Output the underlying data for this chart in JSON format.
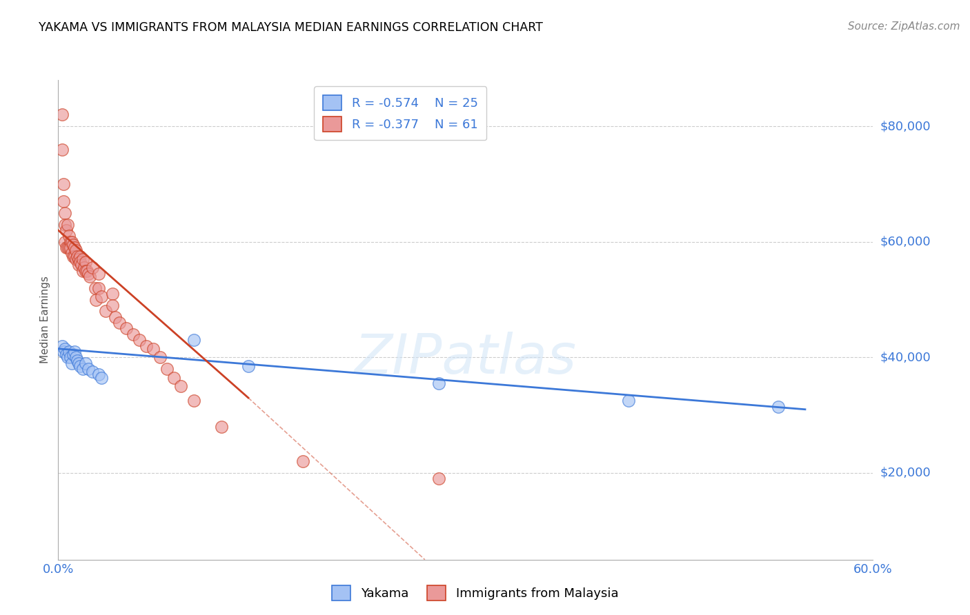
{
  "title": "YAKAMA VS IMMIGRANTS FROM MALAYSIA MEDIAN EARNINGS CORRELATION CHART",
  "source": "Source: ZipAtlas.com",
  "ylabel": "Median Earnings",
  "xlim": [
    0.0,
    0.6
  ],
  "ylim": [
    5000,
    88000
  ],
  "yticks": [
    20000,
    40000,
    60000,
    80000
  ],
  "ytick_labels": [
    "$20,000",
    "$40,000",
    "$60,000",
    "$80,000"
  ],
  "xticks": [
    0.0,
    0.1,
    0.2,
    0.3,
    0.4,
    0.5,
    0.6
  ],
  "xtick_labels": [
    "0.0%",
    "",
    "",
    "",
    "",
    "",
    "60.0%"
  ],
  "legend_R1": "R = -0.574",
  "legend_N1": "N = 25",
  "legend_R2": "R = -0.377",
  "legend_N2": "N = 61",
  "color_blue": "#a4c2f4",
  "color_pink": "#ea9999",
  "color_blue_line": "#3c78d8",
  "color_pink_line": "#cc4125",
  "blue_scatter_x": [
    0.003,
    0.004,
    0.005,
    0.006,
    0.007,
    0.008,
    0.009,
    0.01,
    0.011,
    0.012,
    0.013,
    0.014,
    0.015,
    0.016,
    0.018,
    0.02,
    0.022,
    0.025,
    0.03,
    0.032,
    0.1,
    0.14,
    0.28,
    0.42,
    0.53
  ],
  "blue_scatter_y": [
    42000,
    41000,
    41500,
    40500,
    40000,
    41000,
    40000,
    39000,
    40500,
    41000,
    40000,
    39500,
    39000,
    38500,
    38000,
    39000,
    38000,
    37500,
    37000,
    36500,
    43000,
    38500,
    35500,
    32500,
    31500
  ],
  "pink_scatter_x": [
    0.003,
    0.003,
    0.004,
    0.004,
    0.005,
    0.005,
    0.005,
    0.006,
    0.006,
    0.007,
    0.007,
    0.008,
    0.008,
    0.009,
    0.009,
    0.01,
    0.01,
    0.011,
    0.011,
    0.012,
    0.012,
    0.013,
    0.013,
    0.014,
    0.015,
    0.015,
    0.016,
    0.016,
    0.017,
    0.018,
    0.018,
    0.019,
    0.02,
    0.02,
    0.021,
    0.022,
    0.023,
    0.025,
    0.027,
    0.028,
    0.03,
    0.03,
    0.032,
    0.035,
    0.04,
    0.04,
    0.042,
    0.045,
    0.05,
    0.055,
    0.06,
    0.065,
    0.07,
    0.075,
    0.08,
    0.085,
    0.09,
    0.1,
    0.12,
    0.18,
    0.28
  ],
  "pink_scatter_y": [
    82000,
    76000,
    70000,
    67000,
    65000,
    63000,
    60000,
    62000,
    59000,
    63000,
    59000,
    61000,
    59000,
    60000,
    59000,
    60000,
    58000,
    59500,
    57500,
    59000,
    57500,
    58500,
    57000,
    57500,
    57000,
    56000,
    57500,
    56500,
    56000,
    57000,
    55000,
    55500,
    56500,
    55000,
    55000,
    54500,
    54000,
    55500,
    52000,
    50000,
    54500,
    52000,
    50500,
    48000,
    51000,
    49000,
    47000,
    46000,
    45000,
    44000,
    43000,
    42000,
    41500,
    40000,
    38000,
    36500,
    35000,
    32500,
    28000,
    22000,
    19000
  ],
  "blue_line_x0": 0.0,
  "blue_line_y0": 41500,
  "blue_line_x1": 0.55,
  "blue_line_y1": 31000,
  "pink_line_solid_x0": 0.0,
  "pink_line_solid_y0": 62000,
  "pink_line_solid_x1": 0.14,
  "pink_line_solid_y1": 33000,
  "pink_line_dash_x0": 0.14,
  "pink_line_dash_y0": 33000,
  "pink_line_dash_x1": 0.27,
  "pink_line_dash_y1": 5000
}
